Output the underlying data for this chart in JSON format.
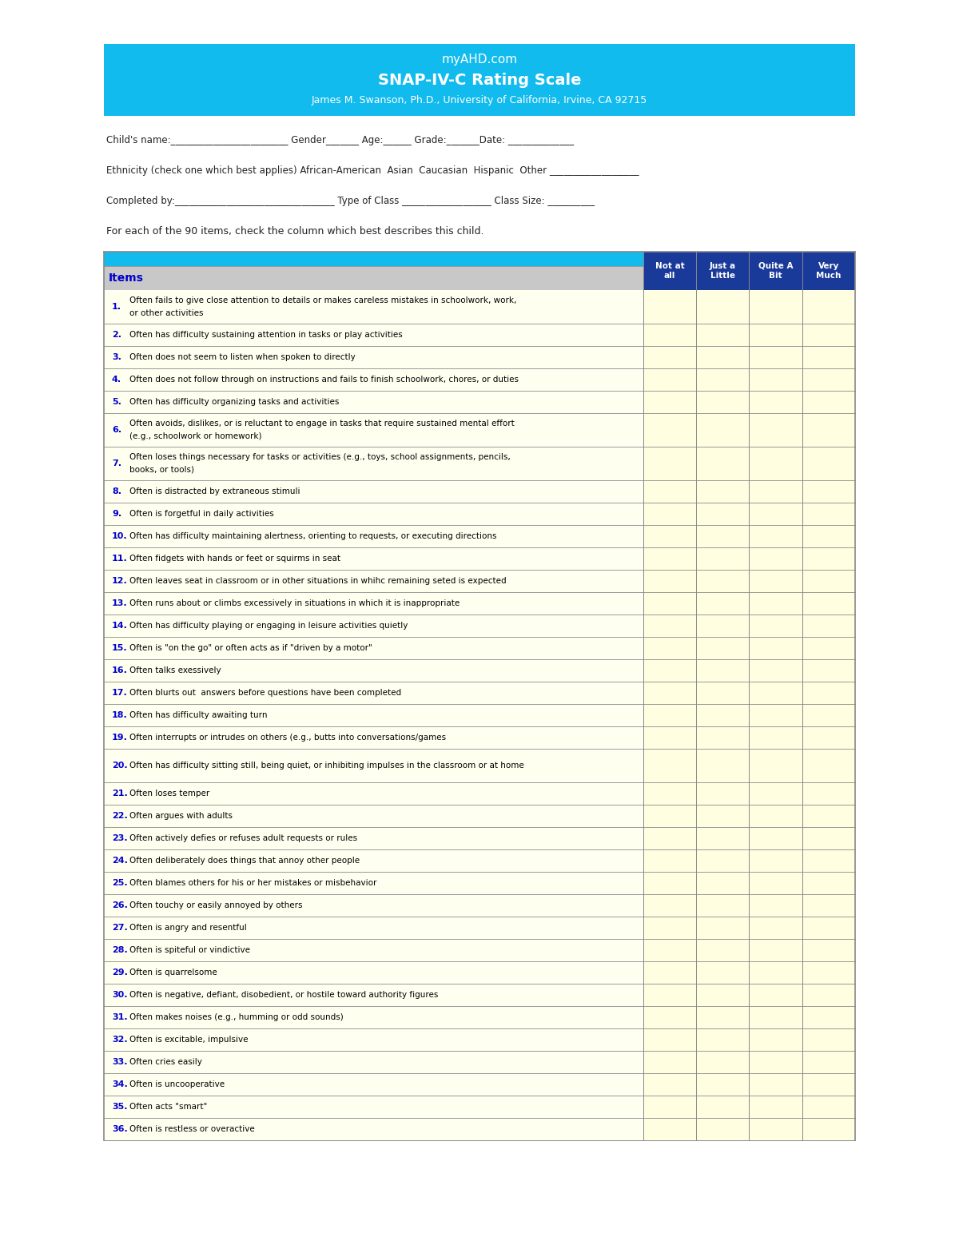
{
  "title_line1": "myAHD.com",
  "title_line2": "SNAP-IV-C Rating Scale",
  "title_line3": "James M. Swanson, Ph.D., University of California, Irvine, CA 92715",
  "header_bg": "#12BBEE",
  "header_text_color": "#FFFFFF",
  "form_line1": "Child's name:_________________________ Gender_______ Age:______ Grade:_______Date: ______________",
  "form_line2": "Ethnicity (check one which best applies) African-American  Asian  Caucasian  Hispanic  Other ___________________",
  "form_line3": "Completed by:__________________________________ Type of Class ___________________ Class Size: __________",
  "instruction": "For each of the 90 items, check the column which best describes this child.",
  "col_headers": [
    "Not at\nall",
    "Just a\nLittle",
    "Quite A\nBit",
    "Very\nMuch"
  ],
  "col_header_bg": "#1A3A9A",
  "col_header_text": "#FFFFFF",
  "items_label": "Items",
  "items_label_color": "#0000CC",
  "row_bg": "#FFFFD0",
  "header_row_bg": "#CCCCCC",
  "row_border": "#999999",
  "number_color": "#0000CC",
  "text_color": "#000000",
  "items": [
    [
      "Often fails to give close attention to details or makes careless mistakes in schoolwork, work,",
      "or other activities"
    ],
    [
      "Often has difficulty sustaining attention in tasks or play activities"
    ],
    [
      "Often does not seem to listen when spoken to directly"
    ],
    [
      "Often does not follow through on instructions and fails to finish schoolwork, chores, or duties"
    ],
    [
      "Often has difficulty organizing tasks and activities"
    ],
    [
      "Often avoids, dislikes, or is reluctant to engage in tasks that require sustained mental effort",
      "(e.g., schoolwork or homework)"
    ],
    [
      "Often loses things necessary for tasks or activities (e.g., toys, school assignments, pencils,",
      "books, or tools)"
    ],
    [
      "Often is distracted by extraneous stimuli"
    ],
    [
      "Often is forgetful in daily activities"
    ],
    [
      "Often has difficulty maintaining alertness, orienting to requests, or executing directions"
    ],
    [
      "Often fidgets with hands or feet or squirms in seat"
    ],
    [
      "Often leaves seat in classroom or in other situations in whihc remaining seted is expected"
    ],
    [
      "Often runs about or climbs excessively in situations in which it is inappropriate"
    ],
    [
      "Often has difficulty playing or engaging in leisure activities quietly"
    ],
    [
      "Often is \"on the go\" or often acts as if \"driven by a motor\""
    ],
    [
      "Often talks exessively"
    ],
    [
      "Often blurts out  answers before questions have been completed"
    ],
    [
      "Often has difficulty awaiting turn"
    ],
    [
      "Often interrupts or intrudes on others (e.g., butts into conversations/games"
    ],
    [
      "Often has difficulty sitting still, being quiet, or inhibiting impulses in the classroom or at home"
    ],
    [
      "Often loses temper"
    ],
    [
      "Often argues with adults"
    ],
    [
      "Often actively defies or refuses adult requests or rules"
    ],
    [
      "Often deliberately does things that annoy other people"
    ],
    [
      "Often blames others for his or her mistakes or misbehavior"
    ],
    [
      "Often touchy or easily annoyed by others"
    ],
    [
      "Often is angry and resentful"
    ],
    [
      "Often is spiteful or vindictive"
    ],
    [
      "Often is quarrelsome"
    ],
    [
      "Often is negative, defiant, disobedient, or hostile toward authority figures"
    ],
    [
      "Often makes noises (e.g., humming or odd sounds)"
    ],
    [
      "Often is excitable, impulsive"
    ],
    [
      "Often cries easily"
    ],
    [
      "Often is uncooperative"
    ],
    [
      "Often acts \"smart\""
    ],
    [
      "Often is restless or overactive"
    ]
  ],
  "bg_color": "#FFFFFF"
}
